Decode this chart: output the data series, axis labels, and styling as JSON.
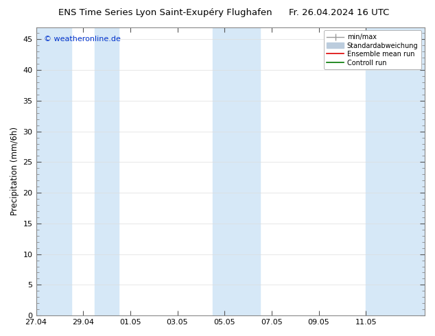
{
  "title_left": "ENS Time Series Lyon Saint-Exupéry Flughafen",
  "title_right": "Fr. 26.04.2024 16 UTC",
  "ylabel": "Precipitation (mm/6h)",
  "copyright": "© weatheronline.de",
  "ylim": [
    0,
    47
  ],
  "yticks": [
    0,
    5,
    10,
    15,
    20,
    25,
    30,
    35,
    40,
    45
  ],
  "xlim": [
    0,
    16.5
  ],
  "x_tick_labels": [
    "27.04",
    "29.04",
    "01.05",
    "03.05",
    "05.05",
    "07.05",
    "09.05",
    "11.05"
  ],
  "x_tick_positions": [
    0,
    2,
    4,
    6,
    8,
    10,
    12,
    14
  ],
  "shaded_regions": [
    [
      0,
      1.5
    ],
    [
      2.5,
      3.5
    ],
    [
      7.5,
      9.5
    ],
    [
      14.0,
      16.5
    ]
  ],
  "shaded_color": "#d6e8f7",
  "background_color": "#ffffff",
  "plot_bg_color": "#ffffff",
  "legend_items": [
    {
      "label": "min/max",
      "color": "#999999",
      "lw": 1.0
    },
    {
      "label": "Standardabweichung",
      "color": "#bbccdd",
      "lw": 5
    },
    {
      "label": "Ensemble mean run",
      "color": "#dd0000",
      "lw": 1.0
    },
    {
      "label": "Controll run",
      "color": "#007700",
      "lw": 1.0
    }
  ],
  "grid_color": "#dddddd",
  "spine_color": "#888888",
  "tick_color": "#000000",
  "title_fontsize": 9.5,
  "axis_label_fontsize": 8.5,
  "tick_fontsize": 8,
  "copyright_color": "#0033cc",
  "copyright_fontsize": 8
}
